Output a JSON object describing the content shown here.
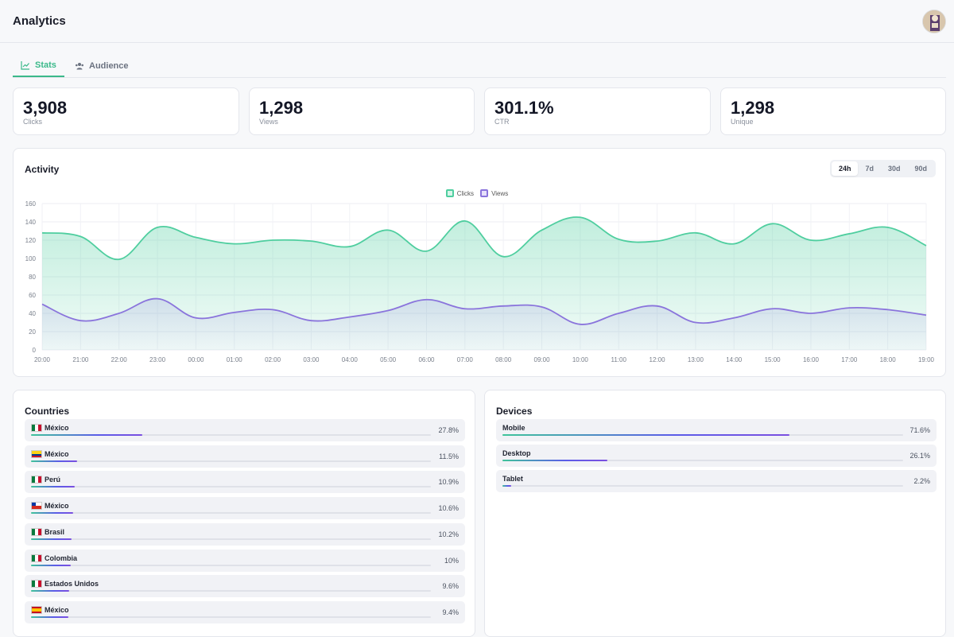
{
  "header": {
    "title": "Analytics"
  },
  "tabs": [
    {
      "label": "Stats",
      "icon": "line-chart-icon"
    },
    {
      "label": "Audience",
      "icon": "users-icon"
    }
  ],
  "stats": [
    {
      "value": "3,908",
      "label": "Clicks"
    },
    {
      "value": "1,298",
      "label": "Views"
    },
    {
      "value": "301.1%",
      "label": "CTR"
    },
    {
      "value": "1,298",
      "label": "Unique"
    }
  ],
  "activity": {
    "title": "Activity",
    "ranges": [
      "24h",
      "7d",
      "30d",
      "90d"
    ],
    "selected_range": "24h"
  },
  "chart_data": {
    "type": "area",
    "categories": [
      "20:00",
      "21:00",
      "22:00",
      "23:00",
      "00:00",
      "01:00",
      "02:00",
      "03:00",
      "04:00",
      "05:00",
      "06:00",
      "07:00",
      "08:00",
      "09:00",
      "10:00",
      "11:00",
      "12:00",
      "13:00",
      "14:00",
      "15:00",
      "16:00",
      "17:00",
      "18:00",
      "19:00"
    ],
    "series": [
      {
        "name": "Clicks",
        "color": "#4fce9f",
        "values": [
          128,
          124,
          99,
          134,
          123,
          116,
          120,
          119,
          113,
          131,
          108,
          141,
          102,
          131,
          145,
          121,
          119,
          128,
          116,
          138,
          120,
          127,
          134,
          114
        ]
      },
      {
        "name": "Views",
        "color": "#8a74dc",
        "values": [
          50,
          32,
          40,
          56,
          35,
          41,
          44,
          32,
          36,
          43,
          55,
          45,
          48,
          47,
          28,
          40,
          48,
          30,
          35,
          45,
          40,
          46,
          44,
          38
        ]
      }
    ],
    "yticks": [
      0,
      20,
      40,
      60,
      80,
      100,
      120,
      140,
      160
    ],
    "ylim": [
      0,
      160
    ],
    "grid": true,
    "legend": "top-center"
  },
  "countries": {
    "title": "Countries",
    "items": [
      {
        "name": "México",
        "flag": "flag-mx",
        "pct_label": "27.8%",
        "pct": 27.8
      },
      {
        "name": "México",
        "flag": "flag-co",
        "pct_label": "11.5%",
        "pct": 11.5
      },
      {
        "name": "Perú",
        "flag": "flag-mx",
        "pct_label": "10.9%",
        "pct": 10.9
      },
      {
        "name": "México",
        "flag": "flag-cl",
        "pct_label": "10.6%",
        "pct": 10.6
      },
      {
        "name": "Brasil",
        "flag": "flag-mx",
        "pct_label": "10.2%",
        "pct": 10.2
      },
      {
        "name": "Colombia",
        "flag": "flag-mx",
        "pct_label": "10%",
        "pct": 10
      },
      {
        "name": "Estados Unidos",
        "flag": "flag-mx",
        "pct_label": "9.6%",
        "pct": 9.6
      },
      {
        "name": "México",
        "flag": "flag-es",
        "pct_label": "9.4%",
        "pct": 9.4
      }
    ]
  },
  "devices": {
    "title": "Devices",
    "items": [
      {
        "name": "Mobile",
        "pct_label": "71.6%",
        "pct": 71.6
      },
      {
        "name": "Desktop",
        "pct_label": "26.1%",
        "pct": 26.1
      },
      {
        "name": "Tablet",
        "pct_label": "2.2%",
        "pct": 2.2
      }
    ]
  }
}
